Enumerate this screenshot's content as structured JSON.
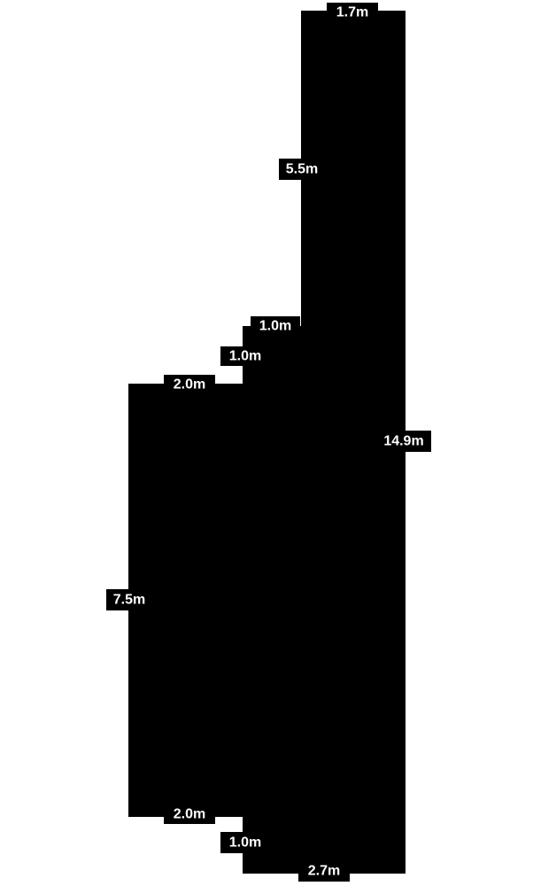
{
  "colors": {
    "background": "#ffffff",
    "fill": "#000000",
    "label_text": "#ffffff",
    "label_bg": "#000000"
  },
  "dimensions": [
    {
      "key": "top",
      "label": "1.7m"
    },
    {
      "key": "upper_left_wall",
      "label": "5.5m"
    },
    {
      "key": "step_upper",
      "label": "1.0m"
    },
    {
      "key": "step_side",
      "label": "1.0m"
    },
    {
      "key": "step_lower",
      "label": "2.0m"
    },
    {
      "key": "right_wall",
      "label": "14.9m"
    },
    {
      "key": "left_wall",
      "label": "7.5m"
    },
    {
      "key": "bottom_step",
      "label": "2.0m"
    },
    {
      "key": "bottom_side",
      "label": "1.0m"
    },
    {
      "key": "bottom",
      "label": "2.7m"
    }
  ]
}
